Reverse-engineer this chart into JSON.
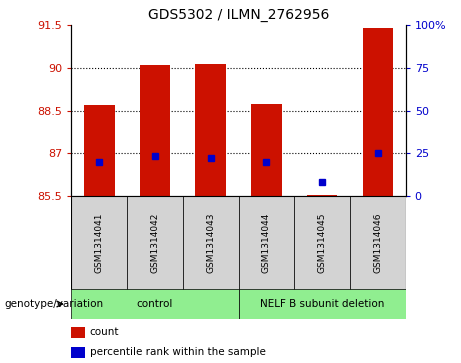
{
  "title": "GDS5302 / ILMN_2762956",
  "samples": [
    "GSM1314041",
    "GSM1314042",
    "GSM1314043",
    "GSM1314044",
    "GSM1314045",
    "GSM1314046"
  ],
  "bar_color": "#cc1100",
  "percentile_color": "#0000cc",
  "counts": [
    88.7,
    90.1,
    90.15,
    88.75,
    85.55,
    91.4
  ],
  "percentiles": [
    86.7,
    86.9,
    86.85,
    86.7,
    86.0,
    87.0
  ],
  "ylim_left": [
    85.5,
    91.5
  ],
  "ylim_right": [
    0,
    100
  ],
  "yticks_left": [
    85.5,
    87.0,
    88.5,
    90.0,
    91.5
  ],
  "ytick_labels_left": [
    "85.5",
    "87",
    "88.5",
    "90",
    "91.5"
  ],
  "yticks_right": [
    0,
    25,
    50,
    75,
    100
  ],
  "ytick_labels_right": [
    "0",
    "25",
    "50",
    "75",
    "100%"
  ],
  "grid_yticks": [
    87.0,
    88.5,
    90.0
  ],
  "bar_width": 0.55,
  "genotype_label": "genotype/variation",
  "group_spans": [
    [
      0,
      2,
      "control"
    ],
    [
      3,
      5,
      "NELF B subunit deletion"
    ]
  ],
  "group_color": "#90ee90",
  "legend_items": [
    [
      "count",
      "#cc1100"
    ],
    [
      "percentile rank within the sample",
      "#0000cc"
    ]
  ]
}
